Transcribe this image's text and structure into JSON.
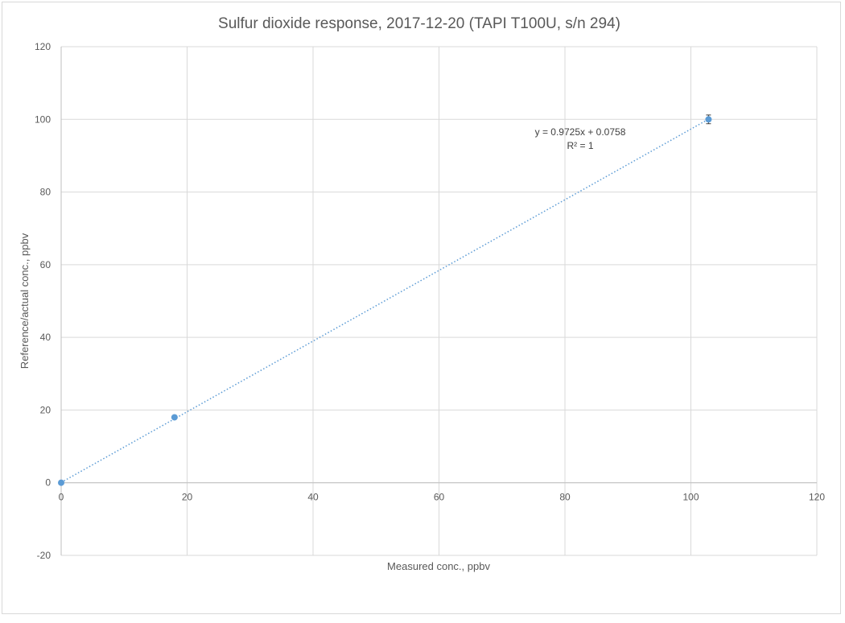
{
  "chart_data": {
    "type": "scatter",
    "title": "Sulfur dioxide response, 2017-12-20 (TAPI T100U, s/n 294)",
    "xlabel": "Measured conc., ppbv",
    "ylabel": "Reference/actual conc., ppbv",
    "xlim": [
      0,
      120
    ],
    "ylim": [
      -20,
      120
    ],
    "x_ticks": [
      0,
      20,
      40,
      60,
      80,
      100,
      120
    ],
    "y_ticks": [
      -20,
      0,
      20,
      40,
      60,
      80,
      100,
      120
    ],
    "x_tick_labels": [
      "0",
      "20",
      "40",
      "60",
      "80",
      "100",
      "120"
    ],
    "y_tick_labels": [
      "-20",
      "0",
      "20",
      "40",
      "60",
      "80",
      "100",
      "120"
    ],
    "grid": true,
    "legend": "none",
    "series": [
      {
        "color": "#5b9bd5",
        "points": [
          {
            "x": 0,
            "y": 0
          },
          {
            "x": 18,
            "y": 18
          },
          {
            "x": 102.8,
            "y": 100,
            "yerr": 1.2
          }
        ]
      }
    ],
    "trendline": {
      "type": "linear",
      "slope": 0.9725,
      "intercept": 0.0758,
      "x_range": [
        0,
        102.8
      ],
      "style": "dotted",
      "color": "#5b9bd5",
      "equation_label": "y = 0.9725x + 0.0758",
      "r2_label": "R² = 1"
    }
  }
}
